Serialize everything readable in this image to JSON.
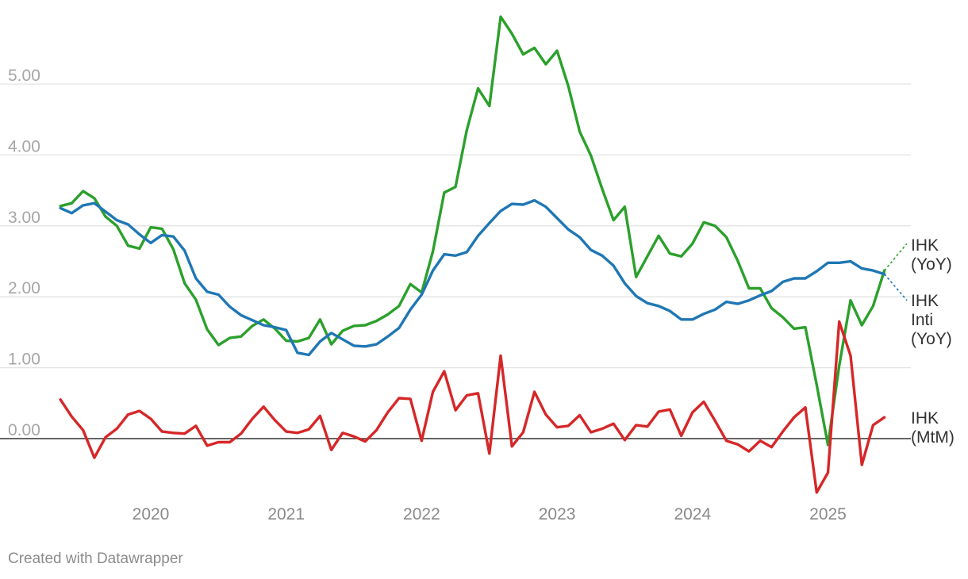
{
  "chart_data": {
    "type": "line",
    "title": "",
    "xlabel": "",
    "ylabel": "",
    "ylim": [
      -0.75,
      5.95
    ],
    "xlim": [
      2019.4,
      2025.6
    ],
    "y_ticks": [
      0,
      1,
      2,
      3,
      4,
      5
    ],
    "y_tick_labels": [
      "0.00",
      "1.00",
      "2.00",
      "3.00",
      "4.00",
      "5.00"
    ],
    "x_ticks": [
      {
        "value": 2020.0,
        "label": "2020"
      },
      {
        "value": 2021.0,
        "label": "2021"
      },
      {
        "value": 2022.0,
        "label": "2022"
      },
      {
        "value": 2023.0,
        "label": "2023"
      },
      {
        "value": 2024.0,
        "label": "2024"
      },
      {
        "value": 2025.0,
        "label": "2025"
      }
    ],
    "start": {
      "year": 2019,
      "month": 5
    },
    "series": [
      {
        "name": "IHK (YoY)",
        "label_lines": [
          "IHK",
          "(YoY)"
        ],
        "color": "#2ca02c",
        "values": [
          3.28,
          3.32,
          3.49,
          3.39,
          3.13,
          3.0,
          2.72,
          2.68,
          2.98,
          2.96,
          2.67,
          2.19,
          1.96,
          1.54,
          1.32,
          1.42,
          1.44,
          1.59,
          1.68,
          1.55,
          1.38,
          1.37,
          1.42,
          1.68,
          1.33,
          1.52,
          1.59,
          1.6,
          1.66,
          1.75,
          1.87,
          2.18,
          2.06,
          2.64,
          3.47,
          3.55,
          4.35,
          4.94,
          4.69,
          5.95,
          5.71,
          5.42,
          5.51,
          5.28,
          5.47,
          4.97,
          4.33,
          3.99,
          3.52,
          3.08,
          3.27,
          2.28,
          2.57,
          2.86,
          2.61,
          2.57,
          2.75,
          3.05,
          3.0,
          2.84,
          2.51,
          2.12,
          2.12,
          1.84,
          1.71,
          1.55,
          1.57,
          0.76,
          -0.09,
          1.03,
          1.95,
          1.6,
          1.87,
          2.37
        ]
      },
      {
        "name": "IHK Inti (YoY)",
        "label_lines": [
          "IHK",
          "Inti",
          "(YoY)"
        ],
        "color": "#1f77b4",
        "values": [
          3.25,
          3.18,
          3.29,
          3.32,
          3.2,
          3.08,
          3.02,
          2.88,
          2.76,
          2.87,
          2.85,
          2.65,
          2.26,
          2.07,
          2.03,
          1.86,
          1.74,
          1.67,
          1.6,
          1.57,
          1.53,
          1.21,
          1.18,
          1.37,
          1.49,
          1.4,
          1.31,
          1.3,
          1.33,
          1.44,
          1.56,
          1.82,
          2.03,
          2.37,
          2.6,
          2.58,
          2.63,
          2.86,
          3.04,
          3.21,
          3.31,
          3.3,
          3.36,
          3.27,
          3.11,
          2.95,
          2.84,
          2.66,
          2.58,
          2.44,
          2.19,
          2.01,
          1.91,
          1.87,
          1.8,
          1.68,
          1.68,
          1.76,
          1.82,
          1.93,
          1.9,
          1.95,
          2.02,
          2.08,
          2.21,
          2.26,
          2.26,
          2.36,
          2.48,
          2.48,
          2.5,
          2.4,
          2.37,
          2.32
        ]
      },
      {
        "name": "IHK (MtM)",
        "label_lines": [
          "IHK",
          "(MtM)"
        ],
        "color": "#d62728",
        "values": [
          0.55,
          0.31,
          0.12,
          -0.27,
          0.02,
          0.14,
          0.34,
          0.39,
          0.28,
          0.1,
          0.08,
          0.07,
          0.18,
          -0.1,
          -0.05,
          -0.05,
          0.07,
          0.28,
          0.45,
          0.26,
          0.1,
          0.08,
          0.13,
          0.32,
          -0.16,
          0.08,
          0.03,
          -0.04,
          0.12,
          0.37,
          0.57,
          0.56,
          -0.03,
          0.66,
          0.95,
          0.4,
          0.61,
          0.64,
          -0.21,
          1.17,
          -0.11,
          0.09,
          0.66,
          0.34,
          0.16,
          0.18,
          0.33,
          0.09,
          0.14,
          0.21,
          -0.02,
          0.19,
          0.17,
          0.38,
          0.41,
          0.04,
          0.37,
          0.52,
          0.25,
          -0.03,
          -0.08,
          -0.18,
          -0.03,
          -0.12,
          0.1,
          0.3,
          0.44,
          -0.76,
          -0.48,
          1.65,
          1.17,
          -0.37,
          0.19,
          0.3
        ]
      }
    ]
  },
  "footer": {
    "credit": "Created with Datawrapper"
  }
}
